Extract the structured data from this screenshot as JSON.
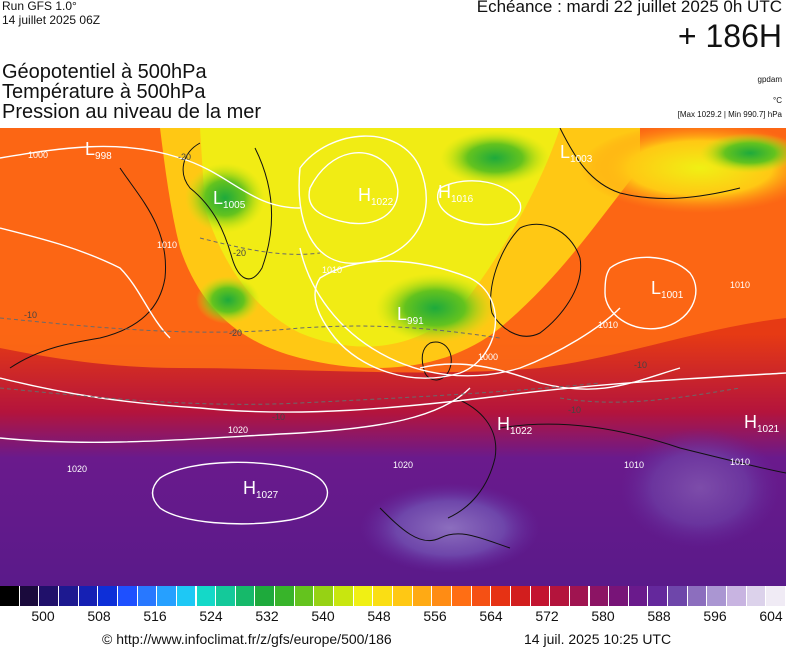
{
  "header": {
    "run": "Run GFS 1.0°",
    "run_date": "14 juillet 2025 06Z",
    "echeance": "Echéance : mardi 22 juillet 2025 0h UTC",
    "hours": "+ 186H",
    "line1": "Géopotentiel à 500hPa",
    "line2": "Température à 500hPa",
    "line3": "Pression au niveau de la mer",
    "source": "gpdam",
    "unit": "°C",
    "minmax": "[Max 1029.2 | Min 990.7] hPa"
  },
  "map": {
    "pressure_centers": [
      {
        "type": "L",
        "value": "998"
      },
      {
        "type": "L",
        "value": "1005"
      },
      {
        "type": "H",
        "value": "1022"
      },
      {
        "type": "H",
        "value": "1016"
      },
      {
        "type": "L",
        "value": "1003"
      },
      {
        "type": "L",
        "value": "991"
      },
      {
        "type": "L",
        "value": "1001"
      },
      {
        "type": "H",
        "value": "1022"
      },
      {
        "type": "H",
        "value": "1021"
      },
      {
        "type": "H",
        "value": "1027"
      }
    ],
    "isobar_labels": [
      "1000",
      "1010",
      "1010",
      "1000",
      "1010",
      "1010",
      "1020",
      "1020",
      "1020",
      "1010",
      "1010"
    ],
    "temp_labels": [
      "-20",
      "-20",
      "-20",
      "-10",
      "-10",
      "-10",
      "-10"
    ]
  },
  "colorbar": {
    "ticks": [
      "500",
      "508",
      "516",
      "524",
      "532",
      "540",
      "548",
      "556",
      "564",
      "572",
      "580",
      "588",
      "596",
      "604"
    ],
    "colors": [
      "#000000",
      "#1a0a3c",
      "#20106a",
      "#1d1990",
      "#1520b4",
      "#0d2fd8",
      "#1e50ff",
      "#2878ff",
      "#26a0ff",
      "#1ec8f5",
      "#14d9c8",
      "#14c99a",
      "#16b96a",
      "#1eaa3c",
      "#38b42a",
      "#64c31e",
      "#96d214",
      "#c8e60f",
      "#f0f014",
      "#fade14",
      "#ffc814",
      "#ffaa14",
      "#ff8c14",
      "#ff6e14",
      "#f55014",
      "#e63214",
      "#d21e1e",
      "#c31430",
      "#b4143c",
      "#a01450",
      "#8c1464",
      "#781478",
      "#6a1a8c",
      "#64289c",
      "#6e46aa",
      "#8c6ebe",
      "#aa96d2",
      "#c8b4e1",
      "#dcd2eb",
      "#f0ebf5"
    ]
  },
  "footer": {
    "url": "© http://www.infoclimat.fr/z/gfs/europe/500/186",
    "timestamp": "14 juil. 2025 10:25 UTC"
  }
}
